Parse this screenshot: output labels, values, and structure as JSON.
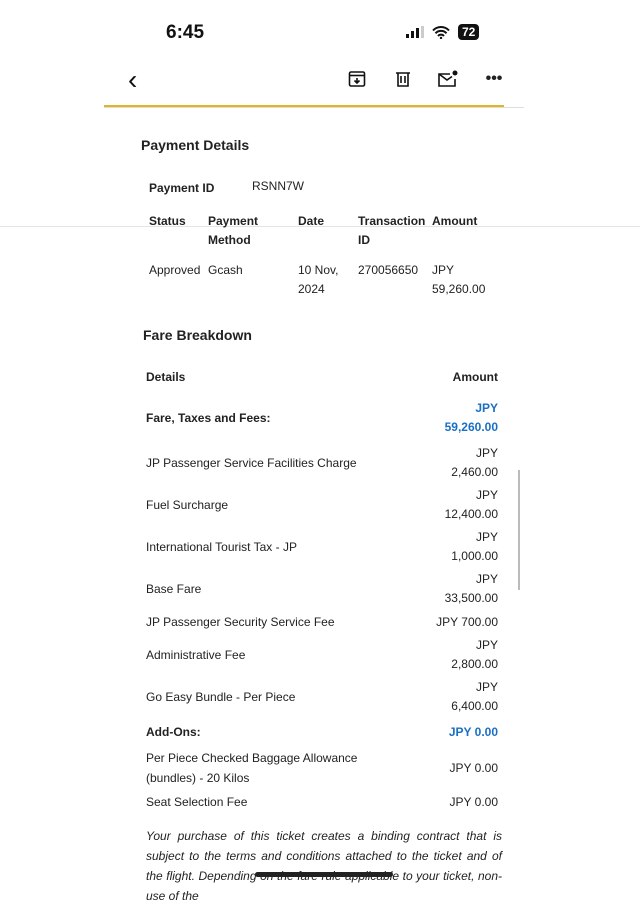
{
  "status_bar": {
    "time": "6:45",
    "battery": "72"
  },
  "toolbar": {
    "back": "‹",
    "icons": [
      "archive-icon",
      "trash-icon",
      "mark-unread-icon",
      "more-icon"
    ]
  },
  "payment": {
    "title": "Payment Details",
    "id_label": "Payment ID",
    "id_value": "RSNN7W",
    "columns": [
      "Status",
      "Payment Method",
      "Date",
      "Transaction ID",
      "Amount"
    ],
    "row": [
      "Approved",
      "Gcash",
      "10 Nov, 2024",
      "270056650",
      "JPY 59,260.00"
    ]
  },
  "fare": {
    "title": "Fare Breakdown",
    "col_details": "Details",
    "col_amount": "Amount",
    "rows": [
      {
        "label": "Fare, Taxes and Fees:",
        "amount": "JPY\n59,260.00"
      },
      {
        "label": "JP Passenger Service Facilities Charge",
        "amount": "JPY\n2,460.00"
      },
      {
        "label": "Fuel Surcharge",
        "amount": "JPY\n12,400.00"
      },
      {
        "label": "International Tourist Tax - JP",
        "amount": "JPY\n1,000.00"
      },
      {
        "label": "Base Fare",
        "amount": "JPY\n33,500.00"
      },
      {
        "label": "JP Passenger Security Service Fee",
        "amount": "JPY 700.00"
      },
      {
        "label": "Administrative Fee",
        "amount": "JPY\n2,800.00"
      },
      {
        "label": "Go Easy Bundle - Per Piece",
        "amount": "JPY\n6,400.00"
      },
      {
        "label": "Add-Ons:",
        "amount": "JPY 0.00"
      },
      {
        "label": "Per Piece Checked Baggage Allowance (bundles) - 20 Kilos",
        "amount": "JPY 0.00"
      },
      {
        "label": "Seat Selection Fee",
        "amount": "JPY 0.00"
      }
    ]
  },
  "note": "Your purchase of this ticket creates a binding contract that is subject to the terms and conditions attached to the ticket and of the flight. Depending on the fare rule applicable to your ticket, non-use of the",
  "colors": {
    "accent": "#1a6fc4",
    "divider": "#e3b520"
  }
}
